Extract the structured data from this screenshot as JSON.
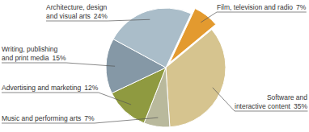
{
  "chart_data": {
    "type": "pie",
    "categories": [
      "Film, television and radio",
      "Software and interactive content",
      "Music and performing arts",
      "Advertising and marketing",
      "Writing, publishing and print media",
      "Architecture, design and visual arts"
    ],
    "values": [
      7,
      35,
      7,
      12,
      15,
      24
    ],
    "value_labels": [
      "7%",
      "35%",
      "7%",
      "12%",
      "15%",
      "24%"
    ],
    "colors": [
      "#e39a2f",
      "#d6c48f",
      "#b9b99c",
      "#8f9a40",
      "#8598a6",
      "#aabdc9"
    ]
  }
}
